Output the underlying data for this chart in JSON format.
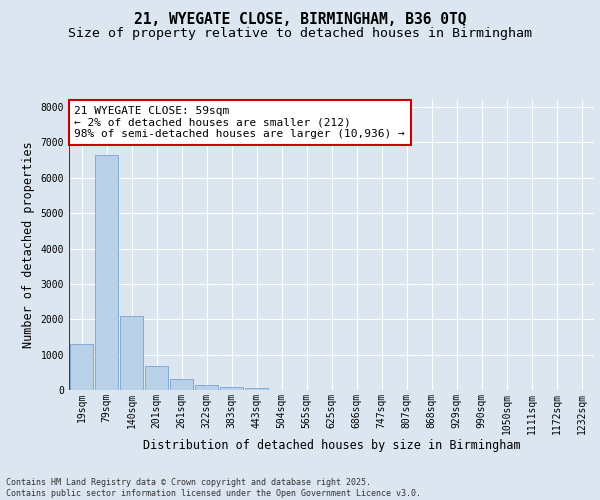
{
  "title_line1": "21, WYEGATE CLOSE, BIRMINGHAM, B36 0TQ",
  "title_line2": "Size of property relative to detached houses in Birmingham",
  "xlabel": "Distribution of detached houses by size in Birmingham",
  "ylabel": "Number of detached properties",
  "categories": [
    "19sqm",
    "79sqm",
    "140sqm",
    "201sqm",
    "261sqm",
    "322sqm",
    "383sqm",
    "443sqm",
    "504sqm",
    "565sqm",
    "625sqm",
    "686sqm",
    "747sqm",
    "807sqm",
    "868sqm",
    "929sqm",
    "990sqm",
    "1050sqm",
    "1111sqm",
    "1172sqm",
    "1232sqm"
  ],
  "values": [
    1300,
    6650,
    2100,
    680,
    300,
    130,
    90,
    60,
    0,
    0,
    0,
    0,
    0,
    0,
    0,
    0,
    0,
    0,
    0,
    0,
    0
  ],
  "bar_color": "#b8d0e8",
  "bar_edge_color": "#6699cc",
  "vline_color": "#cc0000",
  "vline_position": 0,
  "annotation_text": "21 WYEGATE CLOSE: 59sqm\n← 2% of detached houses are smaller (212)\n98% of semi-detached houses are larger (10,936) →",
  "annotation_box_facecolor": "#ffffff",
  "annotation_box_edgecolor": "#cc0000",
  "ylim": [
    0,
    8200
  ],
  "yticks": [
    0,
    1000,
    2000,
    3000,
    4000,
    5000,
    6000,
    7000,
    8000
  ],
  "bg_color": "#dce6f0",
  "plot_bg_color": "#dce6f0",
  "grid_color": "#ffffff",
  "footer_text": "Contains HM Land Registry data © Crown copyright and database right 2025.\nContains public sector information licensed under the Open Government Licence v3.0.",
  "title_fontsize": 10.5,
  "subtitle_fontsize": 9.5,
  "axis_label_fontsize": 8.5,
  "tick_fontsize": 7,
  "annotation_fontsize": 8,
  "footer_fontsize": 6
}
